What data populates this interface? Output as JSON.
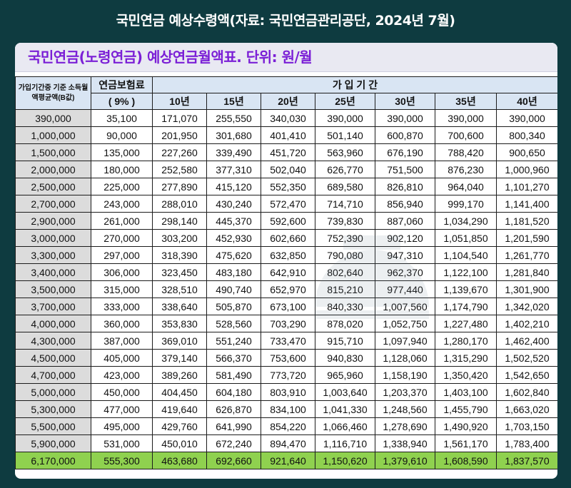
{
  "page_title": "국민연금 예상수령액(자료: 국민연금관리공단, 2024년 7월)",
  "subtitle": "국민연금(노령연금) 예상연금월액표. 단위: 원/월",
  "table": {
    "head_income": "가입기간중 기준 소득월액평균액(B값)",
    "head_premium": "연금보험료",
    "head_premium_rate": "( 9% )",
    "head_period": "가 입 기 간",
    "periods": [
      "10년",
      "15년",
      "20년",
      "25년",
      "30년",
      "35년",
      "40년"
    ],
    "rows": [
      [
        "390,000",
        "35,100",
        "171,070",
        "255,550",
        "340,030",
        "390,000",
        "390,000",
        "390,000",
        "390,000"
      ],
      [
        "1,000,000",
        "90,000",
        "201,950",
        "301,680",
        "401,410",
        "501,140",
        "600,870",
        "700,600",
        "800,340"
      ],
      [
        "1,500,000",
        "135,000",
        "227,260",
        "339,490",
        "451,720",
        "563,960",
        "676,190",
        "788,420",
        "900,650"
      ],
      [
        "2,000,000",
        "180,000",
        "252,580",
        "377,310",
        "502,040",
        "626,770",
        "751,500",
        "876,230",
        "1,000,960"
      ],
      [
        "2,500,000",
        "225,000",
        "277,890",
        "415,120",
        "552,350",
        "689,580",
        "826,810",
        "964,040",
        "1,101,270"
      ],
      [
        "2,700,000",
        "243,000",
        "288,010",
        "430,240",
        "572,470",
        "714,710",
        "856,940",
        "999,170",
        "1,141,400"
      ],
      [
        "2,900,000",
        "261,000",
        "298,140",
        "445,370",
        "592,600",
        "739,830",
        "887,060",
        "1,034,290",
        "1,181,520"
      ],
      [
        "3,000,000",
        "270,000",
        "303,200",
        "452,930",
        "602,660",
        "752,390",
        "902,120",
        "1,051,850",
        "1,201,590"
      ],
      [
        "3,300,000",
        "297,000",
        "318,390",
        "475,620",
        "632,850",
        "790,080",
        "947,310",
        "1,104,540",
        "1,261,770"
      ],
      [
        "3,400,000",
        "306,000",
        "323,450",
        "483,180",
        "642,910",
        "802,640",
        "962,370",
        "1,122,100",
        "1,281,840"
      ],
      [
        "3,500,000",
        "315,000",
        "328,510",
        "490,740",
        "652,970",
        "815,210",
        "977,440",
        "1,139,670",
        "1,301,900"
      ],
      [
        "3,700,000",
        "333,000",
        "338,640",
        "505,870",
        "673,100",
        "840,330",
        "1,007,560",
        "1,174,790",
        "1,342,020"
      ],
      [
        "4,000,000",
        "360,000",
        "353,830",
        "528,560",
        "703,290",
        "878,020",
        "1,052,750",
        "1,227,480",
        "1,402,210"
      ],
      [
        "4,300,000",
        "387,000",
        "369,010",
        "551,240",
        "733,470",
        "915,710",
        "1,097,940",
        "1,280,170",
        "1,462,400"
      ],
      [
        "4,500,000",
        "405,000",
        "379,140",
        "566,370",
        "753,600",
        "940,830",
        "1,128,060",
        "1,315,290",
        "1,502,520"
      ],
      [
        "4,700,000",
        "423,000",
        "389,260",
        "581,490",
        "773,720",
        "965,960",
        "1,158,190",
        "1,350,420",
        "1,542,650"
      ],
      [
        "5,000,000",
        "450,000",
        "404,450",
        "604,180",
        "803,910",
        "1,003,640",
        "1,203,370",
        "1,403,100",
        "1,602,840"
      ],
      [
        "5,300,000",
        "477,000",
        "419,640",
        "626,870",
        "834,100",
        "1,041,330",
        "1,248,560",
        "1,455,790",
        "1,663,020"
      ],
      [
        "5,500,000",
        "495,000",
        "429,760",
        "641,990",
        "854,220",
        "1,066,460",
        "1,278,690",
        "1,490,920",
        "1,703,150"
      ],
      [
        "5,900,000",
        "531,000",
        "450,010",
        "672,240",
        "894,470",
        "1,116,710",
        "1,338,940",
        "1,561,170",
        "1,783,400"
      ],
      [
        "6,170,000",
        "555,300",
        "463,680",
        "692,660",
        "921,640",
        "1,150,620",
        "1,379,610",
        "1,608,590",
        "1,837,570"
      ]
    ],
    "highlight_row_index": 20
  },
  "colors": {
    "background": "#0e3b40",
    "subtitle_text": "#7b1fd6",
    "header_fill": "#d9e5f3",
    "first_col_fill": "#dcdcdc",
    "highlight_fill": "#8fd14f"
  },
  "watermark_icon": "sunrise-logo-icon"
}
